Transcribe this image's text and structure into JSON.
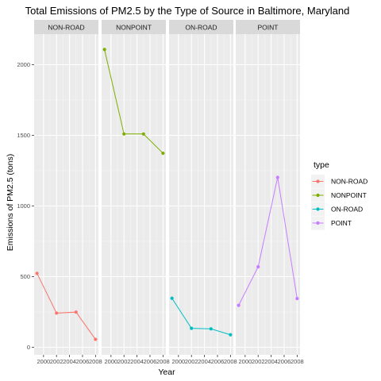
{
  "chart_data": {
    "type": "line",
    "title": "Total Emissions of PM2.5 by the Type of Source in Baltimore, Maryland",
    "xlabel": "Year",
    "ylabel": "Emissions of PM2.5 (tons)",
    "x": [
      1999,
      2002,
      2005,
      2008
    ],
    "x_tick_labels": [
      "2000",
      "2002",
      "2004",
      "2006",
      "2008"
    ],
    "x_tick_values": [
      2000,
      2002,
      2004,
      2006,
      2008
    ],
    "xlim": [
      1999,
      2008
    ],
    "y_tick_labels": [
      "0",
      "500",
      "1000",
      "1500",
      "2000"
    ],
    "y_tick_values": [
      0,
      500,
      1000,
      1500,
      2000
    ],
    "ylim": [
      0,
      2200
    ],
    "grid": true,
    "facets": [
      "NON-ROAD",
      "NONPOINT",
      "ON-ROAD",
      "POINT"
    ],
    "legend": {
      "title": "type",
      "position": "right"
    },
    "series": [
      {
        "name": "NON-ROAD",
        "color": "#F8766D",
        "values": [
          522.9,
          242.0,
          248.9,
          55.8
        ]
      },
      {
        "name": "NONPOINT",
        "color": "#7CAE00",
        "values": [
          2107.6,
          1509.5,
          1509.5,
          1373.2
        ]
      },
      {
        "name": "ON-ROAD",
        "color": "#00BFC4",
        "values": [
          346.8,
          134.3,
          130.4,
          88.3
        ]
      },
      {
        "name": "POINT",
        "color": "#C77CFF",
        "values": [
          296.8,
          569.3,
          1202.5,
          344.98
        ]
      }
    ]
  }
}
